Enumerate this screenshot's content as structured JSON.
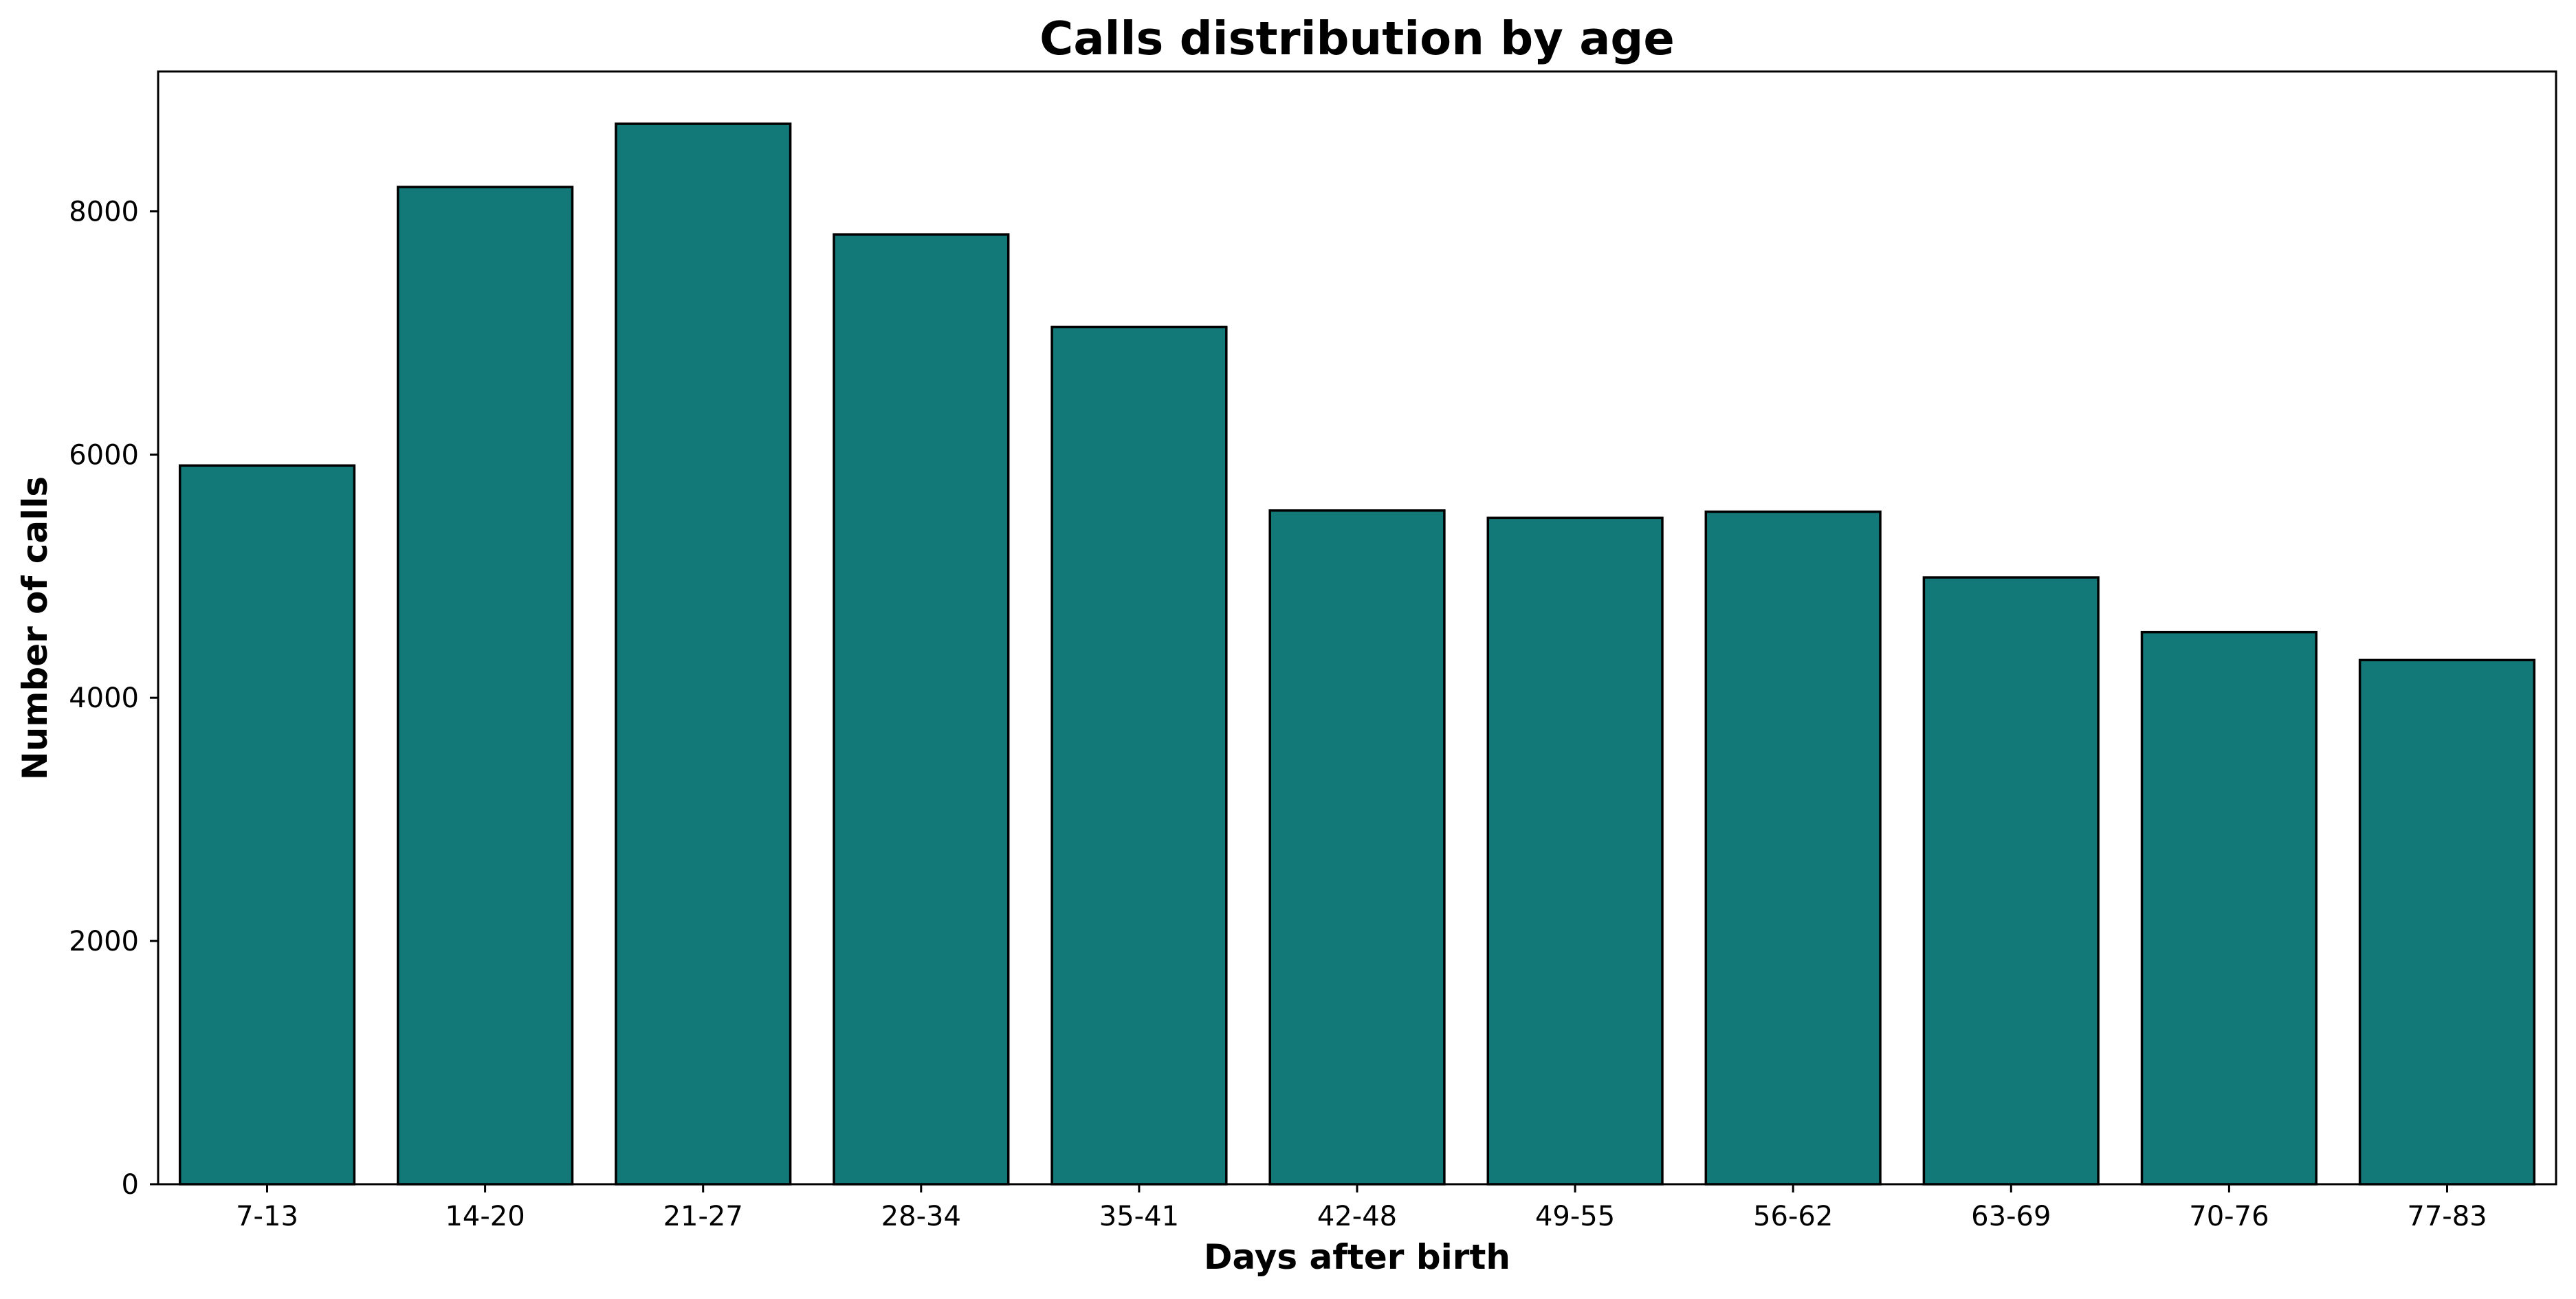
{
  "chart_data": {
    "type": "bar",
    "title": "Calls distribution by age",
    "xlabel": "Days after birth",
    "ylabel": "Number of calls",
    "categories": [
      "7-13",
      "14-20",
      "21-27",
      "28-34",
      "35-41",
      "42-48",
      "49-55",
      "56-62",
      "63-69",
      "70-76",
      "77-83"
    ],
    "values": [
      5910,
      8200,
      8720,
      7810,
      7050,
      5540,
      5480,
      5530,
      4990,
      4540,
      4310
    ],
    "yticks": [
      0,
      2000,
      4000,
      6000,
      8000
    ],
    "ylim": [
      0,
      9150
    ],
    "grid": false,
    "legend": "none",
    "colors": {
      "bar_fill": "#137978",
      "bar_edge": "#000000",
      "axes": "#000000",
      "background": "#ffffff"
    }
  }
}
